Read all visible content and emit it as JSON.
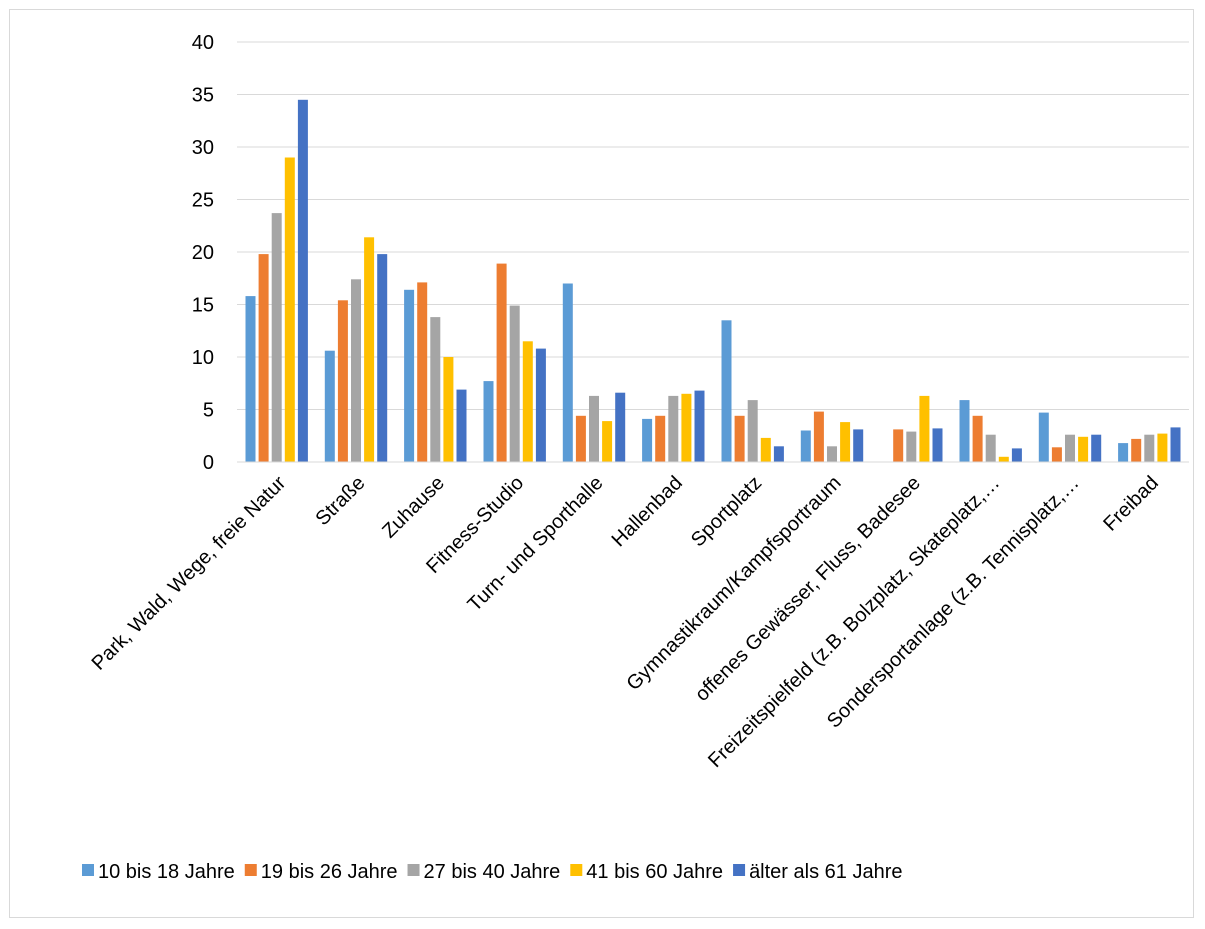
{
  "chart_data": {
    "type": "bar",
    "categories": [
      "Park, Wald, Wege, freie Natur",
      "Straße",
      "Zuhause",
      "Fitness-Studio",
      "Turn- und Sporthalle",
      "Hallenbad",
      "Sportplatz",
      "Gymnastikraum/Kampfsportraum",
      "offenes Gewässer, Fluss, Badesee",
      "Freizeitspielfeld (z.B. Bolzplatz, Skateplatz,…",
      "Sondersportanlage (z.B. Tennisplatz,…",
      "Freibad"
    ],
    "series": [
      {
        "name": "10 bis 18 Jahre",
        "color": "#5B9BD5",
        "values": [
          15.8,
          10.6,
          16.4,
          7.7,
          17.0,
          4.1,
          13.5,
          3.0,
          0,
          5.9,
          4.7,
          1.8
        ]
      },
      {
        "name": "19 bis 26 Jahre",
        "color": "#ED7D31",
        "values": [
          19.8,
          15.4,
          17.1,
          18.9,
          4.4,
          4.4,
          4.4,
          4.8,
          3.1,
          4.4,
          1.4,
          2.2
        ]
      },
      {
        "name": "27 bis 40 Jahre",
        "color": "#A5A5A5",
        "values": [
          23.7,
          17.4,
          13.8,
          14.9,
          6.3,
          6.3,
          5.9,
          1.5,
          2.9,
          2.6,
          2.6,
          2.6
        ]
      },
      {
        "name": "41 bis 60 Jahre",
        "color": "#FFC000",
        "values": [
          29.0,
          21.4,
          10.0,
          11.5,
          3.9,
          6.5,
          2.3,
          3.8,
          6.3,
          0.5,
          2.4,
          2.7
        ]
      },
      {
        "name": "älter als 61 Jahre",
        "color": "#4472C4",
        "values": [
          34.5,
          19.8,
          6.9,
          10.8,
          6.6,
          6.8,
          1.5,
          3.1,
          3.2,
          1.3,
          2.6,
          3.3
        ]
      }
    ],
    "ylim": [
      0,
      40
    ],
    "yticks": [
      0,
      5,
      10,
      15,
      20,
      25,
      30,
      35,
      40
    ],
    "grid": true,
    "legend": "bottom",
    "title": "",
    "xlabel": "",
    "ylabel": ""
  }
}
